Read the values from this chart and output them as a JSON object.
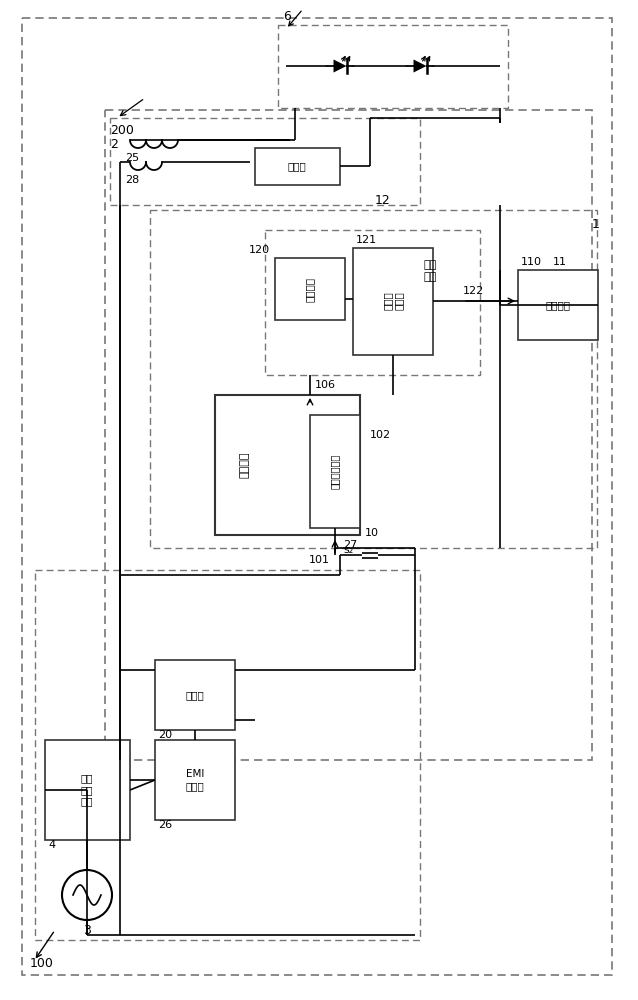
{
  "bg": "#ffffff",
  "figsize": [
    6.38,
    10.0
  ],
  "labels": {
    "n100": "100",
    "n200": "200",
    "n1": "1",
    "n2": "2",
    "n3": "3",
    "n4": "4",
    "n6": "6",
    "n10": "10",
    "n11": "11",
    "n12": "12",
    "n20": "20",
    "n25": "25",
    "n26": "26",
    "n27": "27",
    "n28": "28",
    "n101": "101",
    "n102": "102",
    "n106": "106",
    "n110": "110",
    "n120": "120",
    "n121": "121",
    "n122": "122",
    "rectifier": "整流器",
    "emi": "EMI\n滤波器",
    "phase": "相位\n控刐\n光器",
    "ctrl": "控制路",
    "damp_r": "阻尼电阵",
    "sw2": "第二开\n关电路",
    "damp_mod": "阻尼\n模块",
    "bias": "偏置模块",
    "sense": "感应模块",
    "sw1": "第一开关电路",
    "s2": "s₂"
  }
}
